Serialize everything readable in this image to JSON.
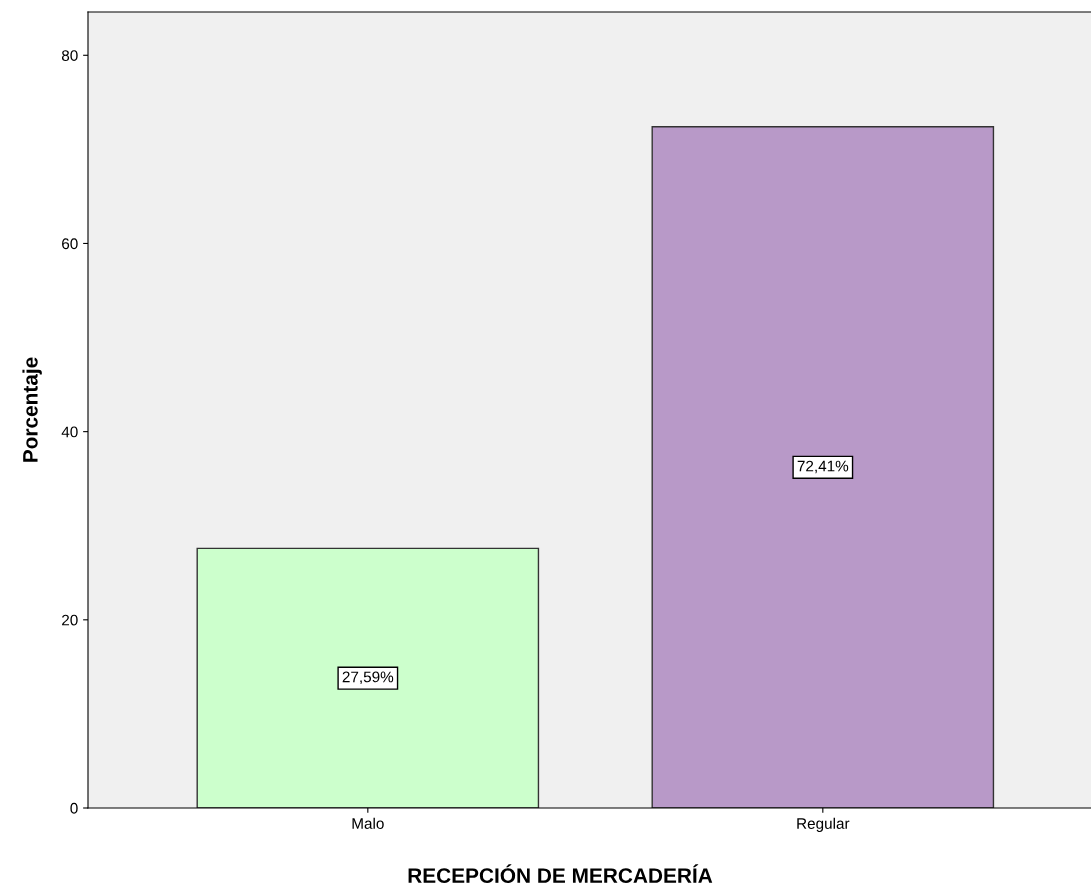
{
  "chart_data": {
    "type": "bar",
    "xlabel": "RECEPCIÓN DE MERCADERÍA",
    "ylabel": "Porcentaje",
    "categories": [
      "Malo",
      "Regular"
    ],
    "values": [
      27.59,
      72.41
    ],
    "colors": [
      "#ccffcc",
      "#b899c8"
    ],
    "value_labels": [
      "27,59%",
      "72,41%"
    ],
    "ylim": [
      0,
      84.6
    ],
    "yticks": [
      0,
      20,
      40,
      60,
      80
    ],
    "grid": false,
    "legend": false
  }
}
